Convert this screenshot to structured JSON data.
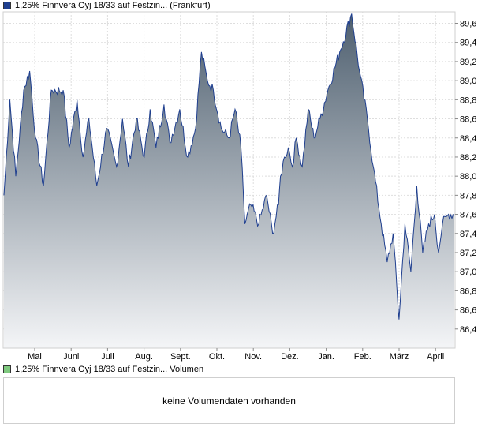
{
  "legend": {
    "price_label": "1,25% Finnvera Oyj 18/33 auf Festzin... (Frankfurt)",
    "volume_label": "1,25% Finnvera Oyj 18/33 auf Festzin... Volumen",
    "price_color": "#1f3f8f",
    "volume_color": "#7fc97f"
  },
  "volume_panel": {
    "message": "keine Volumendaten vorhanden"
  },
  "chart_data": {
    "type": "area",
    "title": "",
    "xlabel": "",
    "ylabel": "",
    "x_tick_labels": [
      "Mai",
      "Juni",
      "Juli",
      "Aug.",
      "Sept.",
      "Okt.",
      "Nov.",
      "Dez.",
      "Jan.",
      "Feb.",
      "März",
      "April"
    ],
    "y_tick_labels": [
      "86,4",
      "86,6",
      "86,8",
      "87,0",
      "87,2",
      "87,4",
      "87,6",
      "87,8",
      "88,0",
      "88,2",
      "88,4",
      "88,6",
      "88,8",
      "89,0",
      "89,2",
      "89,4",
      "89,6"
    ],
    "ylim": [
      86.2,
      89.72
    ],
    "y_axis_side": "right",
    "grid": true,
    "line_color": "#1f3f8f",
    "fill_gradient_top": "#4e5f6f",
    "fill_gradient_bottom": "#f4f5f7",
    "series": [
      {
        "name": "1,25% Finnvera Oyj 18/33 auf Festzin... (Frankfurt)",
        "x_month_index": [
          0.0,
          0.15,
          0.3,
          0.5,
          0.65,
          0.8,
          1.0,
          1.2,
          1.5,
          1.65,
          1.85,
          2.0,
          2.15,
          2.35,
          2.6,
          2.85,
          3.0,
          3.15,
          3.35,
          3.55,
          3.7,
          3.85,
          4.05,
          4.2,
          4.45,
          4.65,
          4.85,
          5.0,
          5.15,
          5.3,
          5.5,
          5.7,
          5.85,
          6.0,
          6.1,
          6.25,
          6.45,
          6.65,
          6.8,
          6.95,
          7.0,
          7.1,
          7.2,
          7.3,
          7.4,
          7.55,
          7.7,
          7.85,
          8.0,
          8.2,
          8.5,
          8.8,
          9.0,
          9.2,
          9.35,
          9.55,
          9.7,
          9.85,
          10.0,
          10.15,
          10.3,
          10.45,
          10.6,
          10.75,
          10.9,
          11.0,
          11.1,
          11.25,
          11.4
        ],
        "values": [
          87.8,
          88.8,
          88.0,
          88.9,
          89.1,
          88.4,
          87.9,
          88.9,
          88.9,
          88.3,
          88.8,
          88.2,
          88.6,
          87.9,
          88.5,
          88.1,
          88.6,
          88.1,
          88.6,
          88.2,
          88.7,
          88.3,
          88.75,
          88.35,
          88.7,
          88.2,
          88.5,
          89.3,
          89.0,
          88.9,
          88.5,
          88.4,
          88.7,
          88.3,
          87.5,
          87.7,
          87.5,
          87.8,
          87.4,
          87.7,
          88.0,
          88.2,
          88.3,
          88.1,
          88.4,
          88.1,
          88.7,
          88.4,
          88.6,
          88.9,
          89.3,
          89.7,
          89.1,
          88.6,
          88.1,
          87.5,
          87.1,
          87.4,
          86.5,
          87.5,
          87.0,
          87.9,
          87.2,
          87.5,
          87.6,
          87.2,
          87.5,
          87.6,
          87.6
        ]
      }
    ]
  }
}
